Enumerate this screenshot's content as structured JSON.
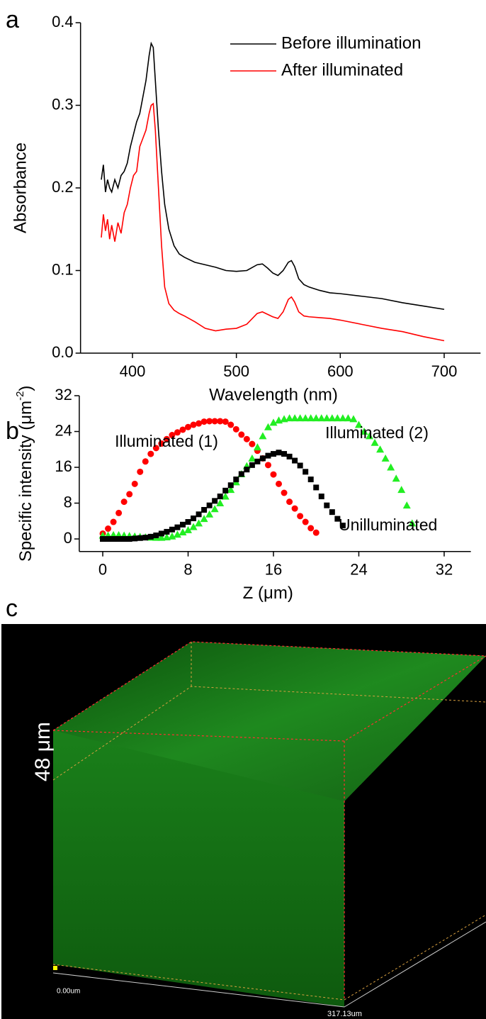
{
  "chart_data": [
    {
      "type": "line",
      "xlabel": "Wavelength (nm)",
      "ylabel": "Absorbance",
      "xlim": [
        350,
        735
      ],
      "xticks": [
        400,
        500,
        600,
        700
      ],
      "ylim": [
        0,
        0.4
      ],
      "yticks": [
        {
          "value": 0,
          "label": "0.0"
        },
        0.1,
        0.2,
        0.3,
        0.4
      ],
      "legend": "top-right",
      "x": [
        370,
        372,
        374,
        376,
        378,
        380,
        383,
        386,
        389,
        392,
        395,
        398,
        401,
        404,
        407,
        410,
        413,
        416,
        418,
        420,
        422,
        425,
        428,
        431,
        435,
        440,
        445,
        450,
        460,
        470,
        480,
        490,
        500,
        510,
        520,
        525,
        530,
        535,
        540,
        545,
        550,
        553,
        556,
        560,
        565,
        570,
        580,
        590,
        600,
        620,
        640,
        660,
        680,
        700
      ],
      "series": [
        {
          "name": "Before illumination",
          "color": "#000000",
          "values": [
            0.21,
            0.228,
            0.195,
            0.21,
            0.2,
            0.195,
            0.21,
            0.2,
            0.215,
            0.22,
            0.23,
            0.25,
            0.265,
            0.28,
            0.29,
            0.31,
            0.33,
            0.36,
            0.375,
            0.37,
            0.33,
            0.27,
            0.22,
            0.18,
            0.15,
            0.13,
            0.12,
            0.116,
            0.11,
            0.107,
            0.104,
            0.1,
            0.099,
            0.1,
            0.107,
            0.108,
            0.103,
            0.097,
            0.094,
            0.1,
            0.11,
            0.112,
            0.105,
            0.09,
            0.083,
            0.08,
            0.076,
            0.073,
            0.072,
            0.069,
            0.066,
            0.061,
            0.057,
            0.053
          ]
        },
        {
          "name": "After illuminated",
          "color": "#ff0000",
          "values": [
            0.14,
            0.168,
            0.148,
            0.162,
            0.138,
            0.155,
            0.135,
            0.158,
            0.145,
            0.17,
            0.18,
            0.2,
            0.215,
            0.22,
            0.25,
            0.26,
            0.27,
            0.29,
            0.3,
            0.302,
            0.27,
            0.2,
            0.13,
            0.08,
            0.06,
            0.052,
            0.048,
            0.045,
            0.038,
            0.03,
            0.027,
            0.029,
            0.03,
            0.035,
            0.048,
            0.05,
            0.047,
            0.044,
            0.042,
            0.05,
            0.065,
            0.068,
            0.062,
            0.05,
            0.045,
            0.044,
            0.043,
            0.042,
            0.04,
            0.035,
            0.03,
            0.026,
            0.02,
            0.015
          ]
        }
      ]
    },
    {
      "type": "scatter",
      "xlabel": "Z (μm)",
      "ylabel": [
        "Specific  intensity (μm",
        "-2",
        ")"
      ],
      "xlim": [
        -2.2,
        34.5
      ],
      "xticks": [
        0,
        8,
        16,
        24,
        32
      ],
      "ylim": [
        -2.8,
        32
      ],
      "yticks": [
        0,
        8,
        16,
        24,
        32
      ],
      "series": [
        {
          "name": "Illuminated (1)",
          "color": "#ff0000",
          "marker": "circle",
          "x": [
            0,
            0.5,
            1,
            1.5,
            2,
            2.5,
            3,
            3.5,
            4,
            4.5,
            5,
            5.5,
            6,
            6.5,
            7,
            7.5,
            8,
            8.5,
            9,
            9.5,
            10,
            10.5,
            11,
            11.5,
            12,
            12.5,
            13,
            13.5,
            14,
            14.5,
            15,
            15.5,
            16,
            16.5,
            17,
            17.5,
            18,
            18.5,
            19,
            19.5,
            20
          ],
          "values": [
            1.2,
            2.3,
            3.8,
            5.8,
            8.3,
            10,
            12.3,
            15,
            17.3,
            19,
            20.3,
            21.3,
            22.3,
            23.2,
            23.8,
            24.4,
            25,
            25.5,
            25.8,
            26.2,
            26.3,
            26.3,
            26.3,
            26.2,
            25.5,
            24.5,
            23.3,
            22.3,
            21.2,
            19.7,
            18,
            16.5,
            14.4,
            12.3,
            10.3,
            8.3,
            6.8,
            5.1,
            3.8,
            2.4,
            1.4
          ]
        },
        {
          "name": "Illuminated (2)",
          "color": "#22ee22",
          "marker": "triangle",
          "x": [
            0,
            0.5,
            1,
            1.5,
            2,
            2.5,
            3,
            3.5,
            4,
            4.5,
            5,
            5.5,
            6,
            6.5,
            7,
            7.5,
            8,
            8.5,
            9,
            9.5,
            10,
            10.5,
            11,
            11.5,
            12,
            12.5,
            13,
            13.5,
            14,
            14.5,
            15,
            15.5,
            16,
            16.5,
            17,
            17.5,
            18,
            18.5,
            19,
            19.5,
            20,
            20.5,
            21,
            21.5,
            22,
            22.5,
            23,
            23.5,
            24,
            24.5,
            25,
            25.5,
            26,
            26.5,
            27,
            27.5,
            28,
            28.5,
            29
          ],
          "values": [
            0.8,
            0.8,
            0.9,
            0.9,
            0.8,
            0.7,
            0.6,
            0.5,
            0.4,
            0.35,
            0.3,
            0.3,
            0.4,
            0.6,
            1,
            1.5,
            2,
            2.7,
            3.5,
            4.5,
            5.5,
            6.7,
            8,
            9.5,
            11,
            12.7,
            14.5,
            16.3,
            18,
            20.5,
            23,
            25,
            26,
            26.5,
            26.8,
            27,
            27,
            27,
            27,
            27,
            27,
            27,
            27,
            27,
            27,
            27,
            27,
            26.8,
            25.5,
            24,
            23,
            21.5,
            20,
            18,
            16,
            13.5,
            11,
            7.5,
            3.5
          ]
        },
        {
          "name": "Unilluminated",
          "color": "#000000",
          "marker": "square",
          "x": [
            0,
            0.5,
            1,
            1.5,
            2,
            2.5,
            3,
            3.5,
            4,
            4.5,
            5,
            5.5,
            6,
            6.5,
            7,
            7.5,
            8,
            8.5,
            9,
            9.5,
            10,
            10.5,
            11,
            11.5,
            12,
            12.5,
            13,
            13.5,
            14,
            14.5,
            15,
            15.5,
            16,
            16.5,
            17,
            17.5,
            18,
            18.5,
            19,
            19.5,
            20,
            20.5,
            21,
            21.5,
            22,
            22.5
          ],
          "values": [
            0,
            0,
            0,
            0,
            0,
            0,
            0.1,
            0.2,
            0.3,
            0.5,
            0.8,
            1.2,
            1.6,
            2.1,
            2.6,
            3.2,
            3.8,
            4.6,
            5.5,
            6.5,
            7.5,
            8.5,
            9.5,
            10.8,
            12,
            13.3,
            14.5,
            15.5,
            16.5,
            17.3,
            18,
            18.6,
            19,
            19.3,
            19,
            18.4,
            17.5,
            16.4,
            15,
            13.3,
            11.5,
            9.5,
            7.5,
            6,
            4.5,
            3
          ]
        }
      ]
    }
  ],
  "panel_labels": [
    "a",
    "b",
    "c"
  ],
  "image": {
    "scale_label": "48 μm",
    "origin_label": "0.00um",
    "end_label": "317.13um"
  }
}
